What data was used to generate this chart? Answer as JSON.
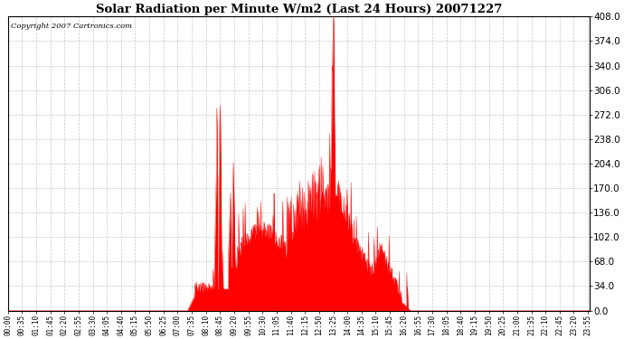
{
  "title": "Solar Radiation per Minute W/m2 (Last 24 Hours) 20071227",
  "copyright_text": "Copyright 2007 Cartronics.com",
  "background_color": "#ffffff",
  "plot_bg_color": "#ffffff",
  "fill_color": "#ff0000",
  "line_color": "#ff0000",
  "grid_color": "#c8c8c8",
  "dashed_line_color": "#ff0000",
  "ylim": [
    0.0,
    408.0
  ],
  "yticks": [
    0.0,
    34.0,
    68.0,
    102.0,
    136.0,
    170.0,
    204.0,
    238.0,
    272.0,
    306.0,
    340.0,
    374.0,
    408.0
  ],
  "total_minutes": 1440,
  "time_labels": [
    "00:00",
    "00:35",
    "01:10",
    "01:45",
    "02:20",
    "02:55",
    "03:30",
    "04:05",
    "04:40",
    "05:15",
    "05:50",
    "06:25",
    "07:00",
    "07:35",
    "08:10",
    "08:45",
    "09:20",
    "09:55",
    "10:30",
    "11:05",
    "11:40",
    "12:15",
    "12:50",
    "13:25",
    "14:00",
    "14:35",
    "15:10",
    "15:45",
    "16:20",
    "16:55",
    "17:30",
    "18:05",
    "18:40",
    "19:15",
    "19:50",
    "20:25",
    "21:00",
    "21:35",
    "22:10",
    "22:45",
    "23:20",
    "23:55"
  ]
}
